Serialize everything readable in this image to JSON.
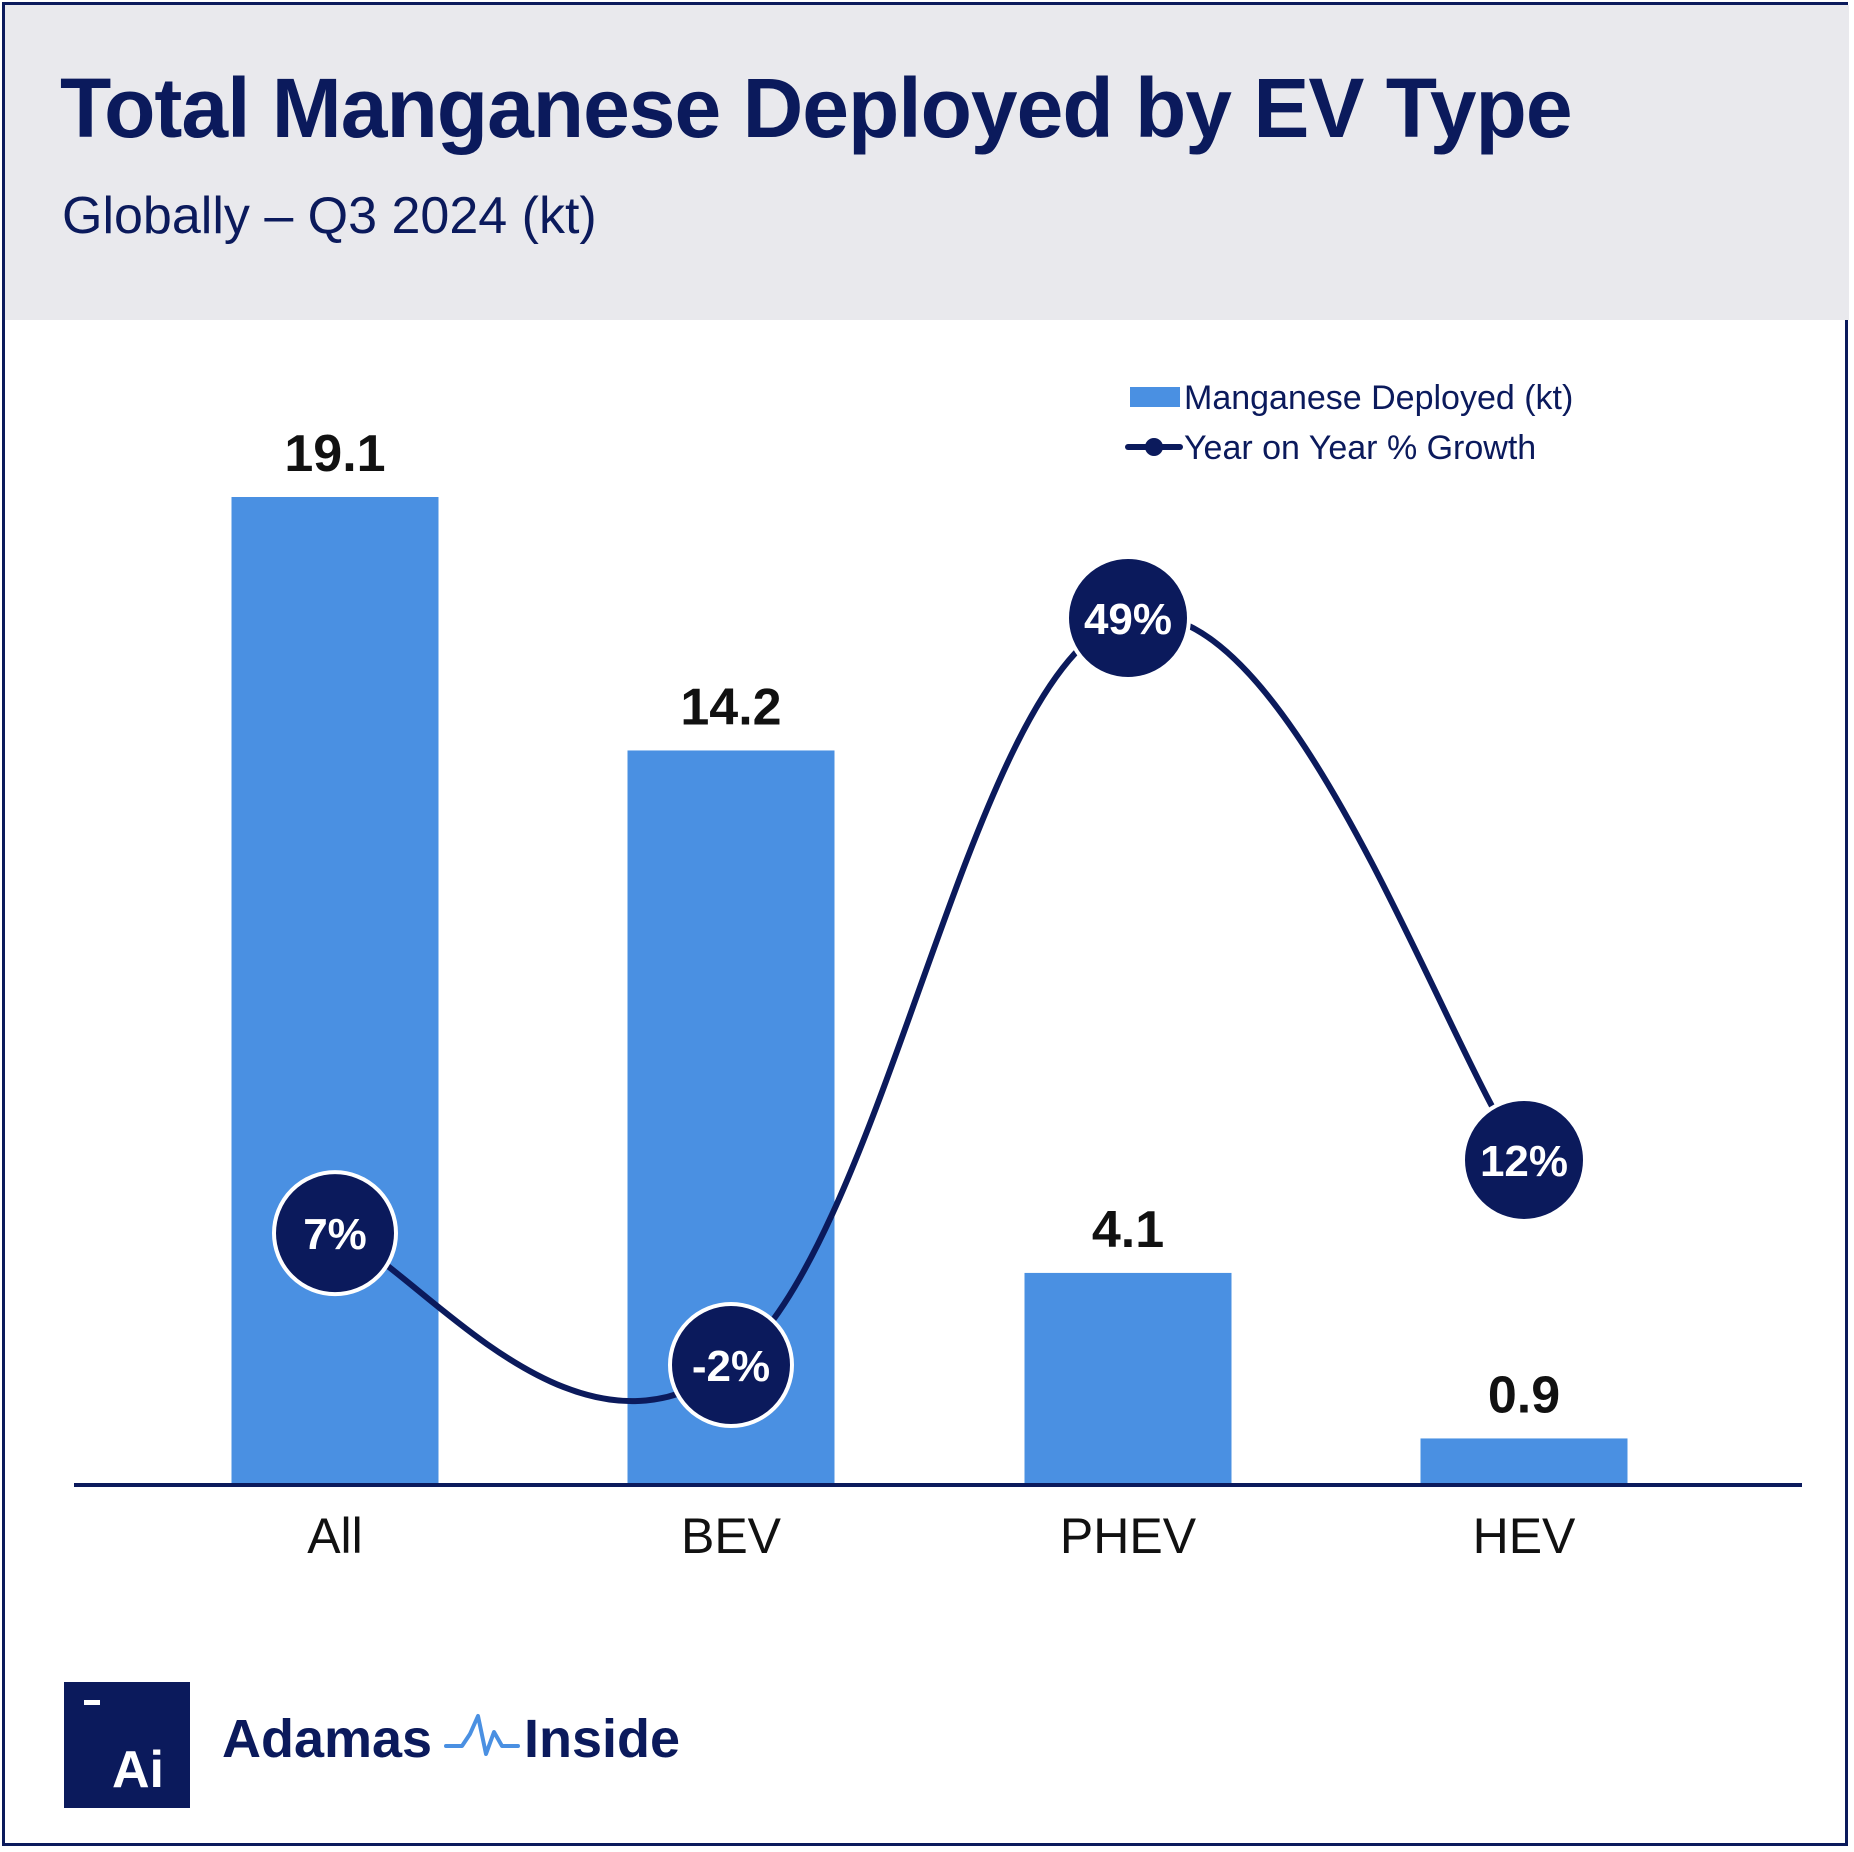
{
  "header": {
    "title": "Total Manganese Deployed by EV Type",
    "subtitle": "Globally – Q3 2024 (kt)"
  },
  "colors": {
    "bar": "#4a90e2",
    "navy": "#0b1a5c",
    "header_bg": "#e9e9ed"
  },
  "chart_data": {
    "type": "bar",
    "categories": [
      "All",
      "BEV",
      "PHEV",
      "HEV"
    ],
    "series": [
      {
        "name": "Manganese Deployed (kt)",
        "type": "bar",
        "values": [
          19.1,
          14.2,
          4.1,
          0.9
        ],
        "labels": [
          "19.1",
          "14.2",
          "4.1",
          "0.9"
        ]
      },
      {
        "name": "Year on Year % Growth",
        "type": "line",
        "values": [
          7,
          -2,
          49,
          12
        ],
        "labels": [
          "7%",
          "-2%",
          "49%",
          "12%"
        ]
      }
    ],
    "legend": [
      "Manganese Deployed (kt)",
      "Year on Year % Growth"
    ],
    "legend_position": "top-right",
    "ylim_bar": [
      0,
      19.1
    ],
    "ylim_growth": [
      -2,
      49
    ],
    "grid": false
  },
  "brand": {
    "logo_text": "Ai",
    "name_left": "Adamas",
    "name_right": "Inside"
  }
}
